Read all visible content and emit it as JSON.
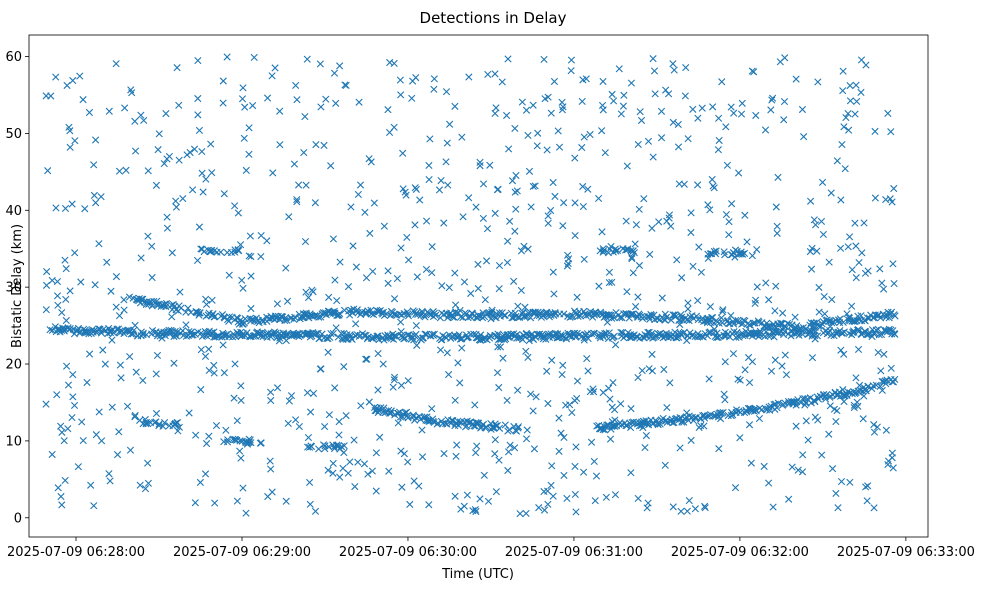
{
  "chart_data": {
    "type": "scatter",
    "title": "Detections in Delay",
    "xlabel": "Time (UTC)",
    "ylabel": "Bistatic Delay (km)",
    "x_type": "time",
    "xlim": [
      "2025-07-09 06:27:43",
      "2025-07-09 06:33:08"
    ],
    "ylim": [
      -2.5,
      62.8
    ],
    "x_ticks": [
      "2025-07-09 06:28:00",
      "2025-07-09 06:29:00",
      "2025-07-09 06:30:00",
      "2025-07-09 06:31:00",
      "2025-07-09 06:32:00",
      "2025-07-09 06:33:00"
    ],
    "y_ticks": [
      0,
      10,
      20,
      30,
      40,
      50,
      60
    ],
    "marker": "x",
    "marker_color": "#1f77b4",
    "grid": false,
    "legend": "none",
    "tracks": [
      {
        "description": "rising track",
        "x": [
          "2025-07-09 06:31:08",
          "2025-07-09 06:31:40",
          "2025-07-09 06:32:10",
          "2025-07-09 06:32:40",
          "2025-07-09 06:32:56"
        ],
        "y": [
          11.7,
          12.8,
          14.3,
          16.3,
          17.8
        ]
      },
      {
        "description": "descending track",
        "x": [
          "2025-07-09 06:29:47",
          "2025-07-09 06:30:10",
          "2025-07-09 06:30:40"
        ],
        "y": [
          14.2,
          12.6,
          11.5
        ]
      },
      {
        "description": "upper track",
        "x": [
          "2025-07-09 06:28:20",
          "2025-07-09 06:29:00",
          "2025-07-09 06:29:40",
          "2025-07-09 06:30:20",
          "2025-07-09 06:31:00",
          "2025-07-09 06:31:40",
          "2025-07-09 06:32:20",
          "2025-07-09 06:32:56"
        ],
        "y": [
          28.5,
          25.5,
          26.8,
          26.3,
          26.5,
          26.0,
          24.8,
          26.5
        ]
      },
      {
        "description": "middle track",
        "x": [
          "2025-07-09 06:27:50",
          "2025-07-09 06:28:30",
          "2025-07-09 06:29:10",
          "2025-07-09 06:29:50",
          "2025-07-09 06:30:30",
          "2025-07-09 06:31:10",
          "2025-07-09 06:31:50",
          "2025-07-09 06:32:30",
          "2025-07-09 06:32:56"
        ],
        "y": [
          24.5,
          24.0,
          23.8,
          23.5,
          23.5,
          23.7,
          23.8,
          24.0,
          24.2
        ]
      }
    ],
    "clusters": [
      {
        "x": "2025-07-09 06:28:52",
        "y": 34.7
      },
      {
        "x": "2025-07-09 06:31:15",
        "y": 34.7
      },
      {
        "x": "2025-07-09 06:31:55",
        "y": 34.5
      },
      {
        "x": "2025-07-09 06:28:30",
        "y": 12.2
      },
      {
        "x": "2025-07-09 06:29:00",
        "y": 10.0
      },
      {
        "x": "2025-07-09 06:29:30",
        "y": 9.2
      }
    ]
  }
}
